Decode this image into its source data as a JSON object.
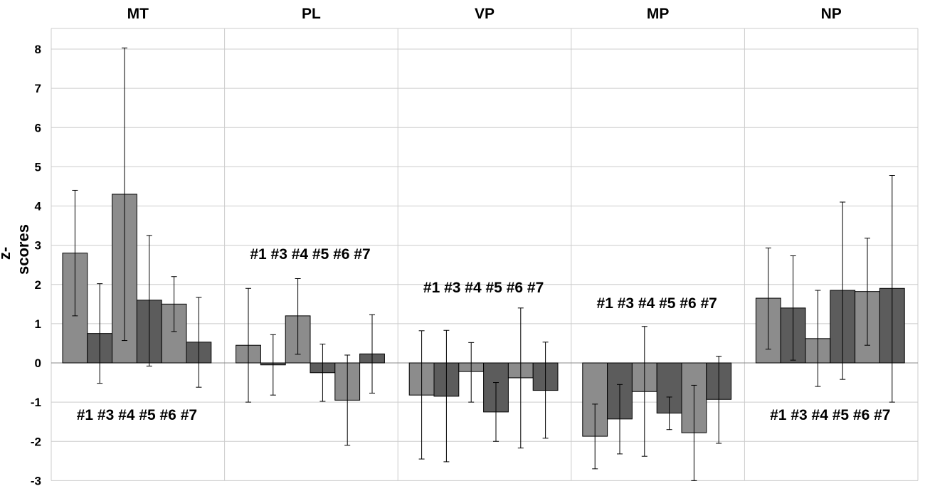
{
  "chart_data": {
    "type": "bar",
    "ylabel": "z-scores",
    "ylim": [
      -3,
      8
    ],
    "yticks": [
      "8",
      "7",
      "6",
      "5",
      "4",
      "3",
      "2",
      "1",
      "0",
      "-1",
      "-2",
      "-3"
    ],
    "grid": true,
    "colors": {
      "light": "#8c8c8c",
      "dark": "#5c5c5c",
      "error_bar": "#000000",
      "grid": "#cccccc"
    },
    "panels": [
      {
        "name": "MT",
        "categories": [
          "#1",
          "#3",
          "#4",
          "#5",
          "#6",
          "#7"
        ],
        "category_label": "#1 #3 #4 #5 #6 #7",
        "values": [
          2.8,
          0.75,
          4.3,
          1.6,
          1.5,
          0.53
        ],
        "error_low": [
          1.2,
          -0.52,
          0.57,
          -0.08,
          0.8,
          -0.62
        ],
        "error_high": [
          4.4,
          2.02,
          8.03,
          3.25,
          2.2,
          1.67
        ]
      },
      {
        "name": "PL",
        "categories": [
          "#1",
          "#3",
          "#4",
          "#5",
          "#6",
          "#7"
        ],
        "category_label": "#1 #3 #4 #5 #6 #7",
        "values": [
          0.45,
          -0.05,
          1.2,
          -0.25,
          -0.95,
          0.23
        ],
        "error_low": [
          -1.0,
          -0.82,
          0.22,
          -0.98,
          -2.1,
          -0.77
        ],
        "error_high": [
          1.9,
          0.72,
          2.15,
          0.48,
          0.2,
          1.23
        ]
      },
      {
        "name": "VP",
        "categories": [
          "#1",
          "#3",
          "#4",
          "#5",
          "#6",
          "#7"
        ],
        "category_label": "#1 #3 #4 #5 #6 #7",
        "values": [
          -0.82,
          -0.85,
          -0.22,
          -1.25,
          -0.38,
          -0.7
        ],
        "error_low": [
          -2.45,
          -2.52,
          -1.0,
          -2.0,
          -2.17,
          -1.92
        ],
        "error_high": [
          0.82,
          0.83,
          0.52,
          -0.5,
          1.4,
          0.53
        ]
      },
      {
        "name": "MP",
        "categories": [
          "#1",
          "#3",
          "#4",
          "#5",
          "#6",
          "#7"
        ],
        "category_label": "#1 #3 #4 #5 #6 #7",
        "values": [
          -1.87,
          -1.43,
          -0.73,
          -1.28,
          -1.78,
          -0.93
        ],
        "error_low": [
          -2.7,
          -2.32,
          -2.38,
          -1.7,
          -3.0,
          -2.05
        ],
        "error_high": [
          -1.05,
          -0.55,
          0.93,
          -0.87,
          -0.57,
          0.17
        ]
      },
      {
        "name": "NP",
        "categories": [
          "#1",
          "#3",
          "#4",
          "#5",
          "#6",
          "#7"
        ],
        "category_label": "#1 #3 #4 #5 #6 #7",
        "values": [
          1.65,
          1.4,
          0.62,
          1.85,
          1.82,
          1.9
        ],
        "error_low": [
          0.35,
          0.07,
          -0.6,
          -0.42,
          0.45,
          -1.0
        ],
        "error_high": [
          2.93,
          2.73,
          1.85,
          4.1,
          3.18,
          4.78
        ]
      }
    ]
  }
}
